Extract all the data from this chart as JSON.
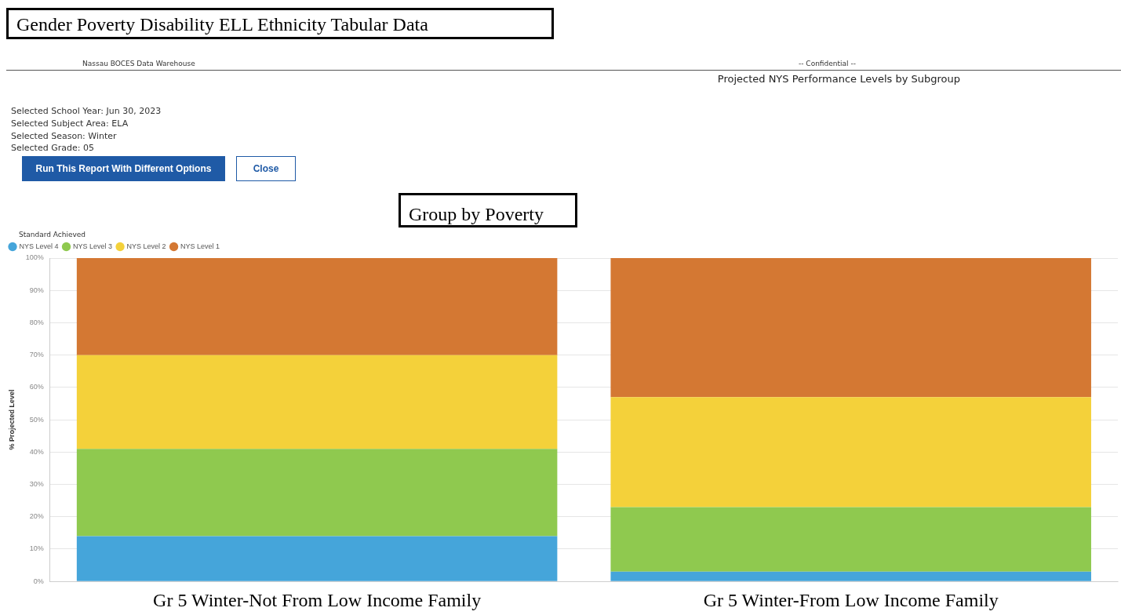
{
  "chart_data": {
    "type": "bar",
    "stacked": true,
    "title": "Projected NYS Performance Levels by Subgroup",
    "annotations": [
      "Gender  Poverty  Disability ELL  Ethnicity  Tabular Data",
      "Nassau BOCES Data Warehouse",
      "-- Confidential --",
      "Selected School Year: Jun 30, 2023",
      "Selected Subject Area: ELA",
      "Selected Season: Winter",
      "Selected Grade: 05",
      "Run This Report With Different Options",
      "Close",
      "Group by Poverty"
    ],
    "legend_title": "Standard Achieved",
    "legend": "top left",
    "ylabel": "% Projected Level",
    "categories": [
      "Gr 5 Winter-Not From Low Income Family",
      "Gr 5 Winter-From Low Income Family"
    ],
    "series": [
      {
        "name": "NYS Level 4",
        "color": "#45a5da",
        "values": [
          14,
          3
        ]
      },
      {
        "name": "NYS Level 3",
        "color": "#8fc94f",
        "values": [
          27,
          20
        ]
      },
      {
        "name": "NYS Level 2",
        "color": "#f4d13a",
        "values": [
          29,
          34
        ]
      },
      {
        "name": "NYS Level 1",
        "color": "#d47833",
        "values": [
          30,
          43
        ]
      }
    ],
    "ylim": [
      0,
      100
    ],
    "yticks": [
      {
        "value": 0,
        "label": "0%"
      },
      {
        "value": 10,
        "label": "10%"
      },
      {
        "value": 20,
        "label": "20%"
      },
      {
        "value": 30,
        "label": "30%"
      },
      {
        "value": 40,
        "label": "40%"
      },
      {
        "value": 50,
        "label": "50%"
      },
      {
        "value": 60,
        "label": "60%"
      },
      {
        "value": 70,
        "label": "70%"
      },
      {
        "value": 80,
        "label": "80%"
      },
      {
        "value": 90,
        "label": "90%"
      },
      {
        "value": 100,
        "label": "100%"
      }
    ],
    "grid": "y"
  }
}
